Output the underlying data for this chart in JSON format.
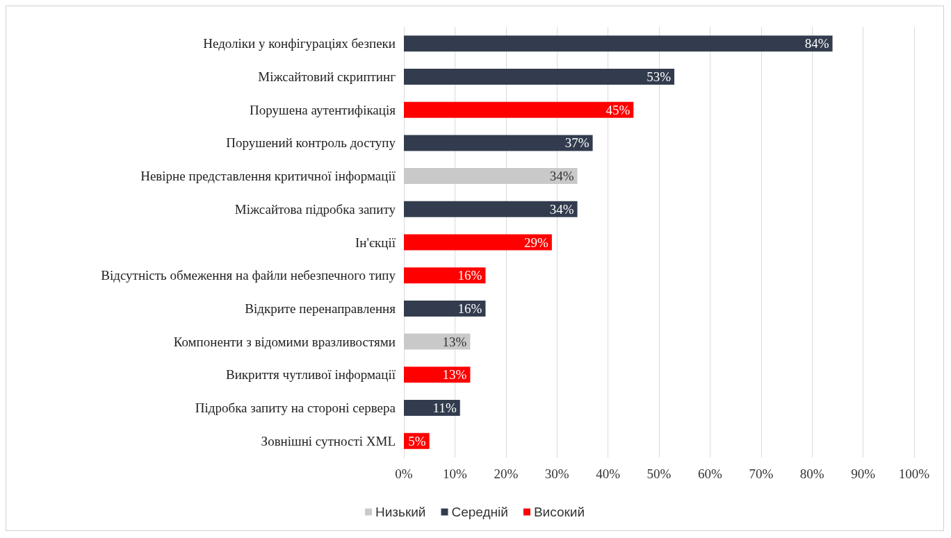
{
  "chart_data": {
    "type": "bar",
    "orientation": "horizontal",
    "stacked": true,
    "categories": [
      "Недоліки у конфігураціях безпеки",
      "Міжсайтовий скриптинг",
      "Порушена аутентифікація",
      "Порушений контроль доступу",
      "Невірне представлення критичної інформації",
      "Міжсайтова підробка запиту",
      "Ін'єкції",
      "Відсутність обмеження на файли небезпечного типу",
      "Відкрите перенаправлення",
      "Компоненти з відомими вразливостями",
      "Викриття чутливої інформації",
      "Підробка запиту на стороні сервера",
      "Зовнішні сутності XML"
    ],
    "series": [
      {
        "name": "Низький",
        "color": "#c9c9c9",
        "values": [
          null,
          null,
          null,
          null,
          34,
          null,
          null,
          null,
          null,
          13,
          null,
          null,
          null
        ],
        "value_labels": [
          null,
          null,
          null,
          null,
          "34%",
          null,
          null,
          null,
          null,
          "13%",
          null,
          null,
          null
        ]
      },
      {
        "name": "Середній",
        "color": "#323c4e",
        "values": [
          84,
          53,
          null,
          37,
          null,
          34,
          null,
          null,
          16,
          null,
          null,
          11,
          null
        ],
        "value_labels": [
          "84%",
          "53%",
          null,
          "37%",
          null,
          "34%",
          null,
          null,
          "16%",
          null,
          null,
          "11%",
          null
        ]
      },
      {
        "name": "Високий",
        "color": "#ff0000",
        "values": [
          null,
          null,
          45,
          null,
          null,
          null,
          29,
          16,
          null,
          null,
          13,
          null,
          5
        ],
        "value_labels": [
          null,
          null,
          "45%",
          null,
          null,
          null,
          "29%",
          "16%",
          null,
          null,
          "13%",
          null,
          "5%"
        ]
      }
    ],
    "xlim": [
      0,
      100
    ],
    "xticks": [
      {
        "value": 0,
        "label": "0%"
      },
      {
        "value": 10,
        "label": "10%"
      },
      {
        "value": 20,
        "label": "20%"
      },
      {
        "value": 30,
        "label": "30%"
      },
      {
        "value": 40,
        "label": "40%"
      },
      {
        "value": 50,
        "label": "50%"
      },
      {
        "value": 60,
        "label": "60%"
      },
      {
        "value": 70,
        "label": "70%"
      },
      {
        "value": 80,
        "label": "80%"
      },
      {
        "value": 90,
        "label": "90%"
      },
      {
        "value": 100,
        "label": "100%"
      }
    ],
    "grid": "x",
    "legend": "bottom"
  }
}
